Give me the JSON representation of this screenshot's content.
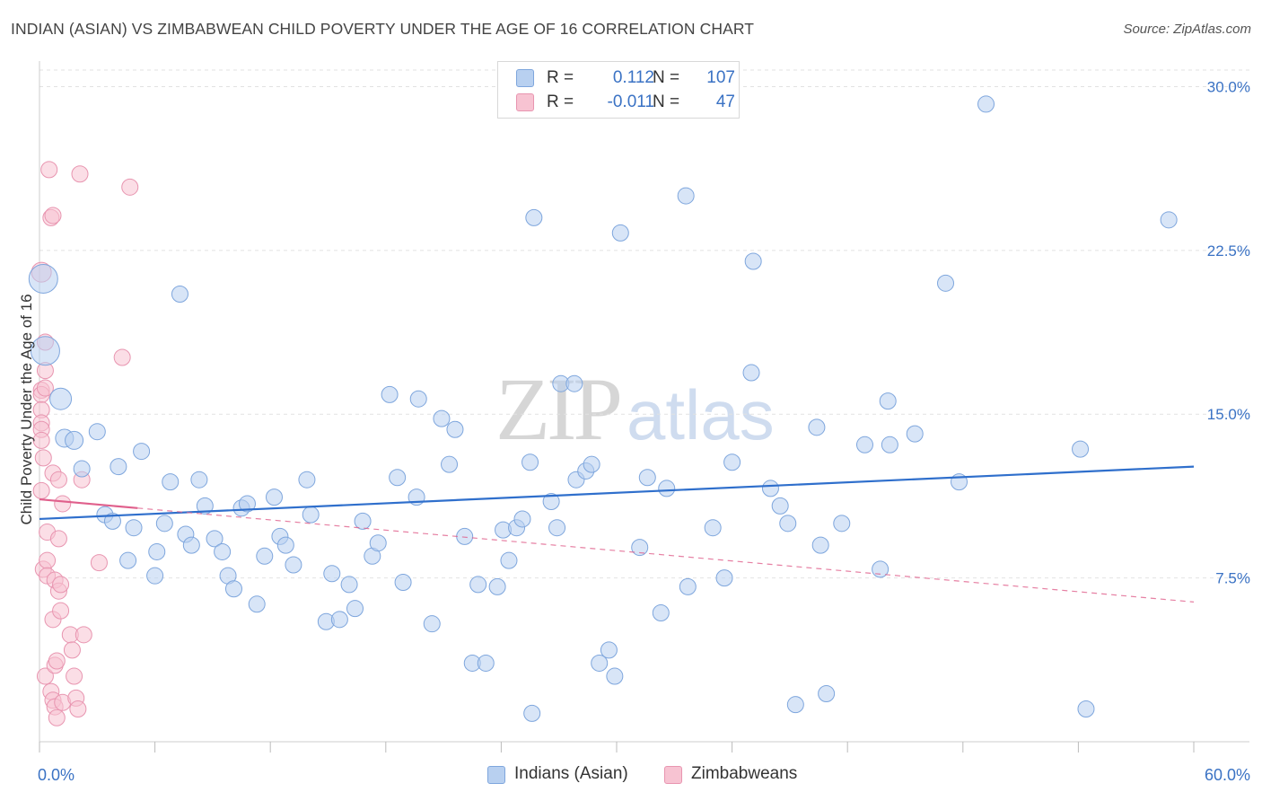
{
  "title": "INDIAN (ASIAN) VS ZIMBABWEAN CHILD POVERTY UNDER THE AGE OF 16 CORRELATION CHART",
  "source": "Source: ZipAtlas.com",
  "watermark": {
    "zip": "ZIP",
    "atlas": "atlas"
  },
  "legend": {
    "rows": [
      {
        "r_label": "R =",
        "r_value": "0.112",
        "n_label": "N =",
        "n_value": "107"
      },
      {
        "r_label": "R =",
        "r_value": "-0.011",
        "n_label": "N =",
        "n_value": "47"
      }
    ]
  },
  "bottom_legend": [
    "Indians (Asian)",
    "Zimbabweans"
  ],
  "colors": {
    "blue_fill": "#b8d0f0",
    "blue_stroke": "#7ea6dd",
    "blue_line": "#2f6fcc",
    "pink_fill": "#f7c3d2",
    "pink_stroke": "#e895b0",
    "pink_line": "#e0608c",
    "tick_label": "#3a72c4",
    "grid": "#e2e2e2"
  },
  "chart_data": {
    "type": "scatter",
    "title": "INDIAN (ASIAN) VS ZIMBABWEAN CHILD POVERTY UNDER THE AGE OF 16 CORRELATION CHART",
    "xlabel": "",
    "ylabel": "Child Poverty Under the Age of 16",
    "xlim": [
      0,
      60
    ],
    "ylim": [
      0,
      31.5
    ],
    "x_tick_labels": [
      "0.0%",
      "60.0%"
    ],
    "y_ticks": [
      7.5,
      15.0,
      22.5,
      30.0
    ],
    "y_tick_labels": [
      "7.5%",
      "15.0%",
      "22.5%",
      "30.0%"
    ],
    "grid": true,
    "series": [
      {
        "name": "Indians (Asian)",
        "color": "#b8d0f0",
        "trend": {
          "x": [
            0,
            60
          ],
          "y": [
            10.2,
            12.6
          ]
        },
        "points": [
          [
            0.2,
            21.2,
            16
          ],
          [
            0.3,
            17.9,
            16
          ],
          [
            1.1,
            15.7,
            12
          ],
          [
            1.3,
            13.9,
            10
          ],
          [
            1.8,
            13.8,
            10
          ],
          [
            2.2,
            12.5,
            9
          ],
          [
            3.0,
            14.2,
            9
          ],
          [
            3.4,
            10.4,
            9
          ],
          [
            3.8,
            10.1,
            9
          ],
          [
            4.1,
            12.6,
            9
          ],
          [
            4.6,
            8.3,
            9
          ],
          [
            4.9,
            9.8,
            9
          ],
          [
            5.3,
            13.3,
            9
          ],
          [
            6.0,
            7.6,
            9
          ],
          [
            6.1,
            8.7,
            9
          ],
          [
            6.5,
            10.0,
            9
          ],
          [
            6.8,
            11.9,
            9
          ],
          [
            7.3,
            20.5,
            9
          ],
          [
            7.6,
            9.5,
            9
          ],
          [
            7.9,
            9.0,
            9
          ],
          [
            8.3,
            12.0,
            9
          ],
          [
            8.6,
            10.8,
            9
          ],
          [
            9.1,
            9.3,
            9
          ],
          [
            9.5,
            8.7,
            9
          ],
          [
            9.8,
            7.6,
            9
          ],
          [
            10.1,
            7.0,
            9
          ],
          [
            10.5,
            10.7,
            9
          ],
          [
            10.8,
            10.9,
            9
          ],
          [
            11.3,
            6.3,
            9
          ],
          [
            11.7,
            8.5,
            9
          ],
          [
            12.2,
            11.2,
            9
          ],
          [
            12.5,
            9.4,
            9
          ],
          [
            12.8,
            9.0,
            9
          ],
          [
            13.2,
            8.1,
            9
          ],
          [
            13.9,
            12.0,
            9
          ],
          [
            14.1,
            10.4,
            9
          ],
          [
            14.9,
            5.5,
            9
          ],
          [
            15.2,
            7.7,
            9
          ],
          [
            15.6,
            5.6,
            9
          ],
          [
            16.1,
            7.2,
            9
          ],
          [
            16.4,
            6.1,
            9
          ],
          [
            16.8,
            10.1,
            9
          ],
          [
            17.3,
            8.5,
            9
          ],
          [
            17.6,
            9.1,
            9
          ],
          [
            18.2,
            15.9,
            9
          ],
          [
            18.6,
            12.1,
            9
          ],
          [
            18.9,
            7.3,
            9
          ],
          [
            19.6,
            11.2,
            9
          ],
          [
            19.7,
            15.7,
            9
          ],
          [
            20.4,
            5.4,
            9
          ],
          [
            20.9,
            14.8,
            9
          ],
          [
            21.3,
            12.7,
            9
          ],
          [
            21.6,
            14.3,
            9
          ],
          [
            22.1,
            9.4,
            9
          ],
          [
            22.5,
            3.6,
            9
          ],
          [
            22.8,
            7.2,
            9
          ],
          [
            23.2,
            3.6,
            9
          ],
          [
            23.8,
            7.1,
            9
          ],
          [
            24.1,
            9.7,
            9
          ],
          [
            24.4,
            8.3,
            9
          ],
          [
            24.8,
            9.8,
            9
          ],
          [
            25.1,
            10.2,
            9
          ],
          [
            25.5,
            12.8,
            9
          ],
          [
            25.6,
            1.3,
            9
          ],
          [
            25.7,
            24.0,
            9
          ],
          [
            26.6,
            11.0,
            9
          ],
          [
            26.9,
            9.8,
            9
          ],
          [
            27.1,
            16.4,
            9
          ],
          [
            27.8,
            16.4,
            9
          ],
          [
            27.9,
            12.0,
            9
          ],
          [
            28.4,
            12.4,
            9
          ],
          [
            28.7,
            12.7,
            9
          ],
          [
            29.1,
            3.6,
            9
          ],
          [
            29.6,
            4.2,
            9
          ],
          [
            29.9,
            3.0,
            9
          ],
          [
            30.2,
            23.3,
            9
          ],
          [
            31.2,
            8.9,
            9
          ],
          [
            31.6,
            12.1,
            9
          ],
          [
            32.3,
            5.9,
            9
          ],
          [
            32.6,
            11.6,
            9
          ],
          [
            33.6,
            25.0,
            9
          ],
          [
            33.7,
            7.1,
            9
          ],
          [
            35.0,
            9.8,
            9
          ],
          [
            35.6,
            7.5,
            9
          ],
          [
            36.0,
            12.8,
            9
          ],
          [
            37.0,
            16.9,
            9
          ],
          [
            37.1,
            22.0,
            9
          ],
          [
            38.0,
            11.6,
            9
          ],
          [
            38.5,
            10.8,
            9
          ],
          [
            38.9,
            10.0,
            9
          ],
          [
            39.3,
            1.7,
            9
          ],
          [
            40.4,
            14.4,
            9
          ],
          [
            40.6,
            9.0,
            9
          ],
          [
            40.9,
            2.2,
            9
          ],
          [
            41.7,
            10.0,
            9
          ],
          [
            42.9,
            13.6,
            9
          ],
          [
            43.7,
            7.9,
            9
          ],
          [
            44.1,
            15.6,
            9
          ],
          [
            44.2,
            13.6,
            9
          ],
          [
            45.5,
            14.1,
            9
          ],
          [
            47.1,
            21.0,
            9
          ],
          [
            47.8,
            11.9,
            9
          ],
          [
            49.2,
            29.2,
            9
          ],
          [
            54.1,
            13.4,
            9
          ],
          [
            54.4,
            1.5,
            9
          ],
          [
            58.7,
            23.9,
            9
          ]
        ]
      },
      {
        "name": "Zimbabweans",
        "color": "#f7c3d2",
        "trend": {
          "x": [
            0,
            5.1
          ],
          "y": [
            11.1,
            10.7
          ]
        },
        "trend_dashed": {
          "x": [
            5.1,
            60
          ],
          "y": [
            10.7,
            6.4
          ]
        },
        "points": [
          [
            0.1,
            21.5,
            11
          ],
          [
            0.1,
            16.1,
            9
          ],
          [
            0.1,
            15.9,
            9
          ],
          [
            0.1,
            15.2,
            9
          ],
          [
            0.1,
            14.6,
            9
          ],
          [
            0.1,
            14.3,
            9
          ],
          [
            0.1,
            13.8,
            9
          ],
          [
            0.1,
            11.5,
            9
          ],
          [
            0.2,
            13.0,
            9
          ],
          [
            0.2,
            7.9,
            9
          ],
          [
            0.3,
            18.3,
            9
          ],
          [
            0.3,
            17.0,
            9
          ],
          [
            0.3,
            16.2,
            9
          ],
          [
            0.3,
            3.0,
            9
          ],
          [
            0.4,
            9.6,
            9
          ],
          [
            0.4,
            8.3,
            9
          ],
          [
            0.4,
            7.6,
            9
          ],
          [
            0.5,
            26.2,
            9
          ],
          [
            0.6,
            24.0,
            9
          ],
          [
            0.6,
            2.3,
            9
          ],
          [
            0.7,
            24.1,
            9
          ],
          [
            0.7,
            5.6,
            9
          ],
          [
            0.7,
            1.9,
            9
          ],
          [
            0.7,
            12.3,
            9
          ],
          [
            0.8,
            3.5,
            9
          ],
          [
            0.8,
            1.6,
            9
          ],
          [
            0.8,
            7.4,
            9
          ],
          [
            0.9,
            3.7,
            9
          ],
          [
            0.9,
            1.1,
            9
          ],
          [
            1.0,
            6.9,
            9
          ],
          [
            1.0,
            9.3,
            9
          ],
          [
            1.0,
            12.0,
            9
          ],
          [
            1.1,
            7.2,
            9
          ],
          [
            1.1,
            6.0,
            9
          ],
          [
            1.2,
            1.8,
            9
          ],
          [
            1.2,
            10.9,
            9
          ],
          [
            1.6,
            4.9,
            9
          ],
          [
            1.7,
            4.2,
            9
          ],
          [
            1.8,
            3.0,
            9
          ],
          [
            1.9,
            2.0,
            9
          ],
          [
            2.0,
            1.5,
            9
          ],
          [
            2.1,
            26.0,
            9
          ],
          [
            2.2,
            12.0,
            9
          ],
          [
            2.3,
            4.9,
            9
          ],
          [
            3.1,
            8.2,
            9
          ],
          [
            4.3,
            17.6,
            9
          ],
          [
            4.7,
            25.4,
            9
          ]
        ]
      }
    ]
  }
}
